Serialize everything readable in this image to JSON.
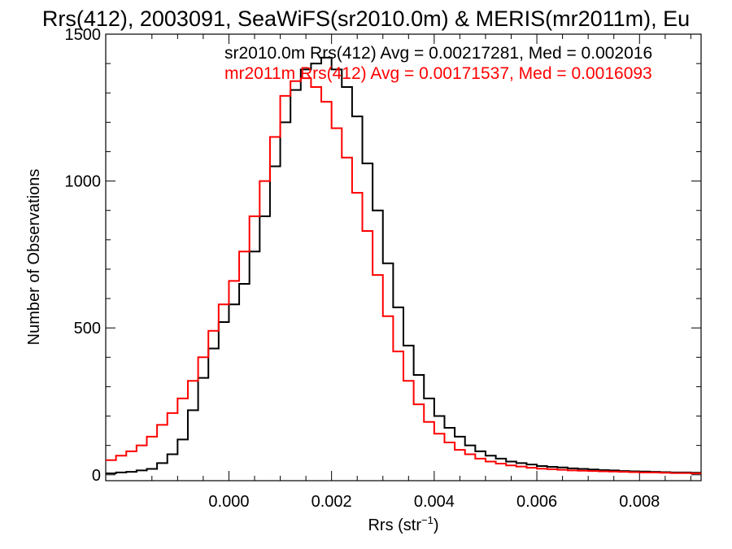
{
  "chart_data": {
    "type": "line",
    "title": "Rrs(412), 2003091, SeaWiFS(sr2010.0m) & MERIS(mr2011m), Eu",
    "xlabel": "Rrs (str",
    "xlabel_sup": "−1",
    "xlabel_close": ")",
    "ylabel": "Number of Observations",
    "xlim": [
      -0.0024,
      0.0092
    ],
    "ylim": [
      -20,
      1500
    ],
    "xticks": [
      0.0,
      0.002,
      0.004,
      0.006,
      0.008
    ],
    "xtick_labels": [
      "0.000",
      "0.002",
      "0.004",
      "0.006",
      "0.008"
    ],
    "yticks": [
      0,
      500,
      1000,
      1500
    ],
    "ytick_labels": [
      "0",
      "500",
      "1000",
      "1500"
    ],
    "grid": false,
    "legend_position": "top-right",
    "annotations": [
      {
        "text": "sr2010.0m Rrs(412) Avg = 0.00217281, Med = 0.002016",
        "color": "#000000"
      },
      {
        "text": "mr2011m Rrs(412) Avg = 0.00171537, Med = 0.0016093",
        "color": "#ff0000"
      }
    ],
    "series": [
      {
        "color": "#000000",
        "x": [
          -0.0024,
          -0.0022,
          -0.002,
          -0.0018,
          -0.0016,
          -0.0014,
          -0.0012,
          -0.001,
          -0.0008,
          -0.0006,
          -0.0004,
          -0.0002,
          0.0,
          0.0002,
          0.0004,
          0.0006,
          0.0008,
          0.001,
          0.0012,
          0.0014,
          0.0016,
          0.0018,
          0.002,
          0.0022,
          0.0024,
          0.0026,
          0.0028,
          0.003,
          0.0032,
          0.0034,
          0.0036,
          0.0038,
          0.004,
          0.0042,
          0.0044,
          0.0046,
          0.0048,
          0.005,
          0.0052,
          0.0054,
          0.0056,
          0.0058,
          0.006,
          0.0062,
          0.0064,
          0.0066,
          0.0068,
          0.007,
          0.0072,
          0.0074,
          0.0076,
          0.0078,
          0.008,
          0.0082,
          0.0084,
          0.0086,
          0.0088,
          0.009,
          0.0092
        ],
        "y": [
          5,
          8,
          10,
          15,
          20,
          40,
          70,
          120,
          220,
          330,
          430,
          520,
          580,
          650,
          760,
          880,
          1050,
          1200,
          1310,
          1380,
          1400,
          1420,
          1380,
          1320,
          1220,
          1060,
          900,
          720,
          570,
          440,
          340,
          260,
          200,
          160,
          130,
          100,
          80,
          65,
          55,
          45,
          40,
          35,
          30,
          27,
          25,
          22,
          20,
          18,
          16,
          15,
          13,
          12,
          11,
          10,
          9,
          8,
          8,
          7,
          6
        ]
      },
      {
        "color": "#ff0000",
        "x": [
          -0.0024,
          -0.0022,
          -0.002,
          -0.0018,
          -0.0016,
          -0.0014,
          -0.0012,
          -0.001,
          -0.0008,
          -0.0006,
          -0.0004,
          -0.0002,
          0.0,
          0.0002,
          0.0004,
          0.0006,
          0.0008,
          0.001,
          0.0012,
          0.0014,
          0.0016,
          0.0018,
          0.002,
          0.0022,
          0.0024,
          0.0026,
          0.0028,
          0.003,
          0.0032,
          0.0034,
          0.0036,
          0.0038,
          0.004,
          0.0042,
          0.0044,
          0.0046,
          0.0048,
          0.005,
          0.0052,
          0.0054,
          0.0056,
          0.0058,
          0.006,
          0.0062,
          0.0064,
          0.0066,
          0.0068,
          0.007,
          0.0072,
          0.0074,
          0.0076,
          0.0078,
          0.008,
          0.0082,
          0.0084,
          0.0086,
          0.0088,
          0.009,
          0.0092
        ],
        "y": [
          50,
          65,
          80,
          100,
          130,
          170,
          210,
          260,
          320,
          400,
          490,
          580,
          660,
          760,
          880,
          1000,
          1150,
          1290,
          1340,
          1350,
          1320,
          1270,
          1180,
          1080,
          960,
          830,
          680,
          540,
          420,
          320,
          240,
          180,
          140,
          110,
          85,
          70,
          55,
          45,
          38,
          32,
          28,
          24,
          21,
          19,
          17,
          15,
          14,
          13,
          12,
          11,
          10,
          9,
          8,
          8,
          7,
          6,
          6,
          5,
          5
        ]
      }
    ]
  }
}
